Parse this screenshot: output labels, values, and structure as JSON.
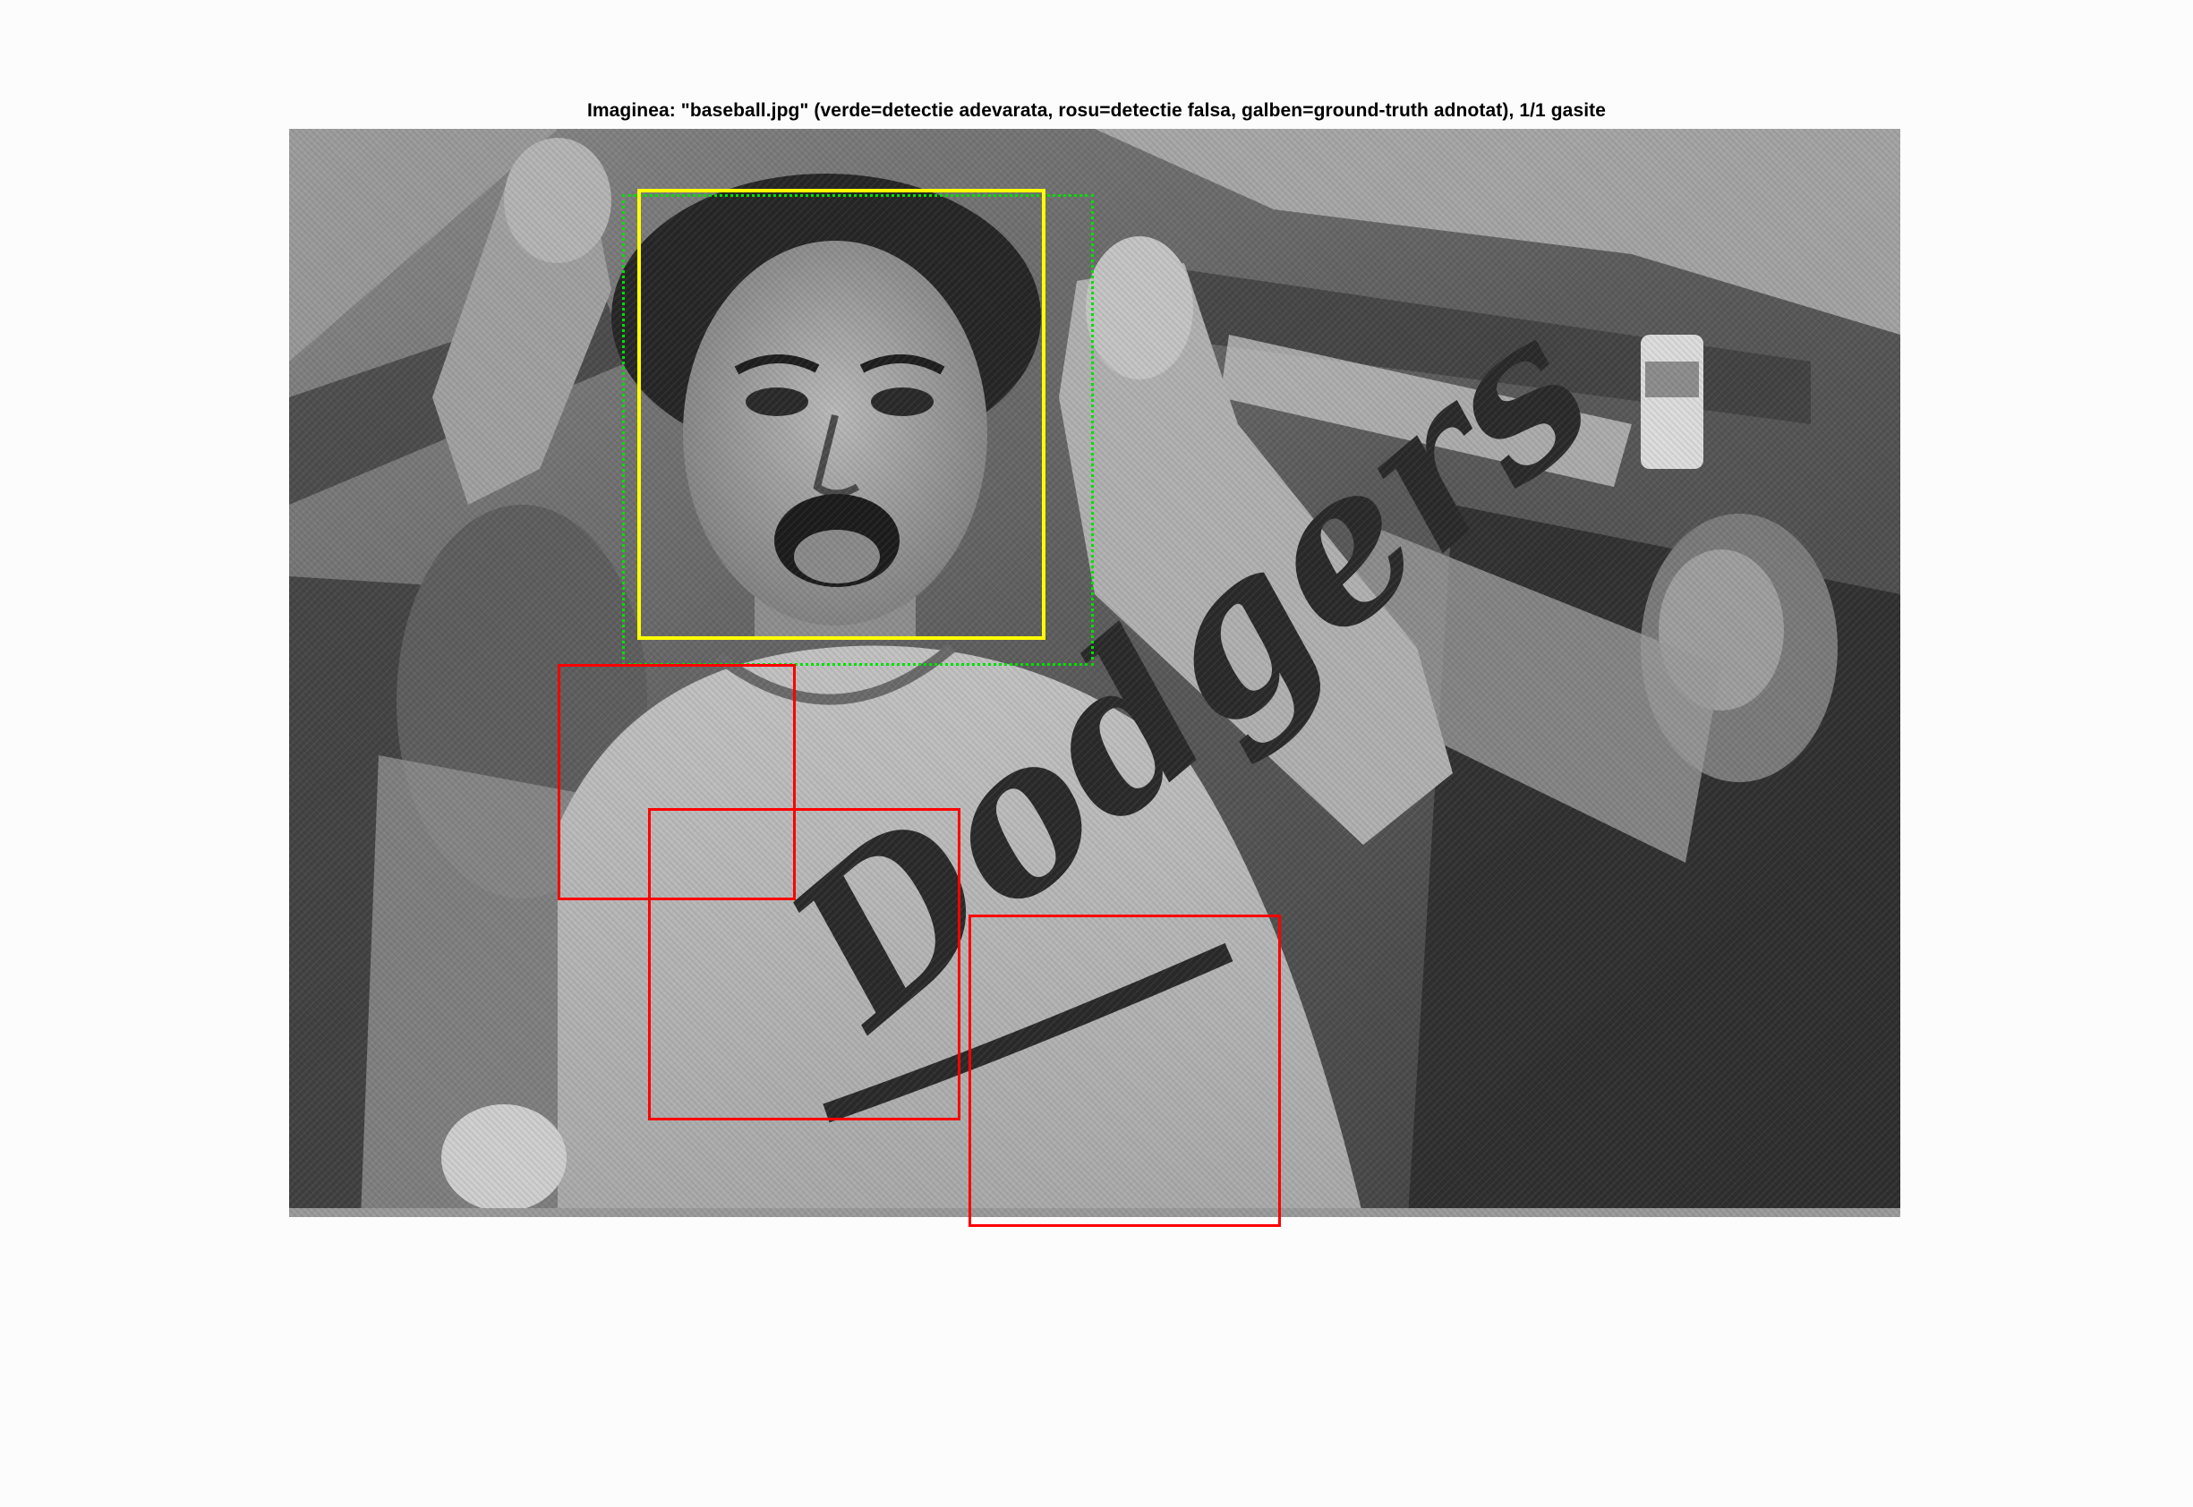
{
  "figure": {
    "title": "Imaginea: \"baseball.jpg\" (verde=detectie adevarata, rosu=detectie falsa, galben=ground-truth adnotat), 1/1 gasite"
  },
  "photo": {
    "jersey_text": "Dodgers"
  },
  "colors": {
    "true_detection": "#00e000",
    "false_detection": "#ff0000",
    "ground_truth": "#ffff00",
    "background": "#fcfcfc"
  }
}
